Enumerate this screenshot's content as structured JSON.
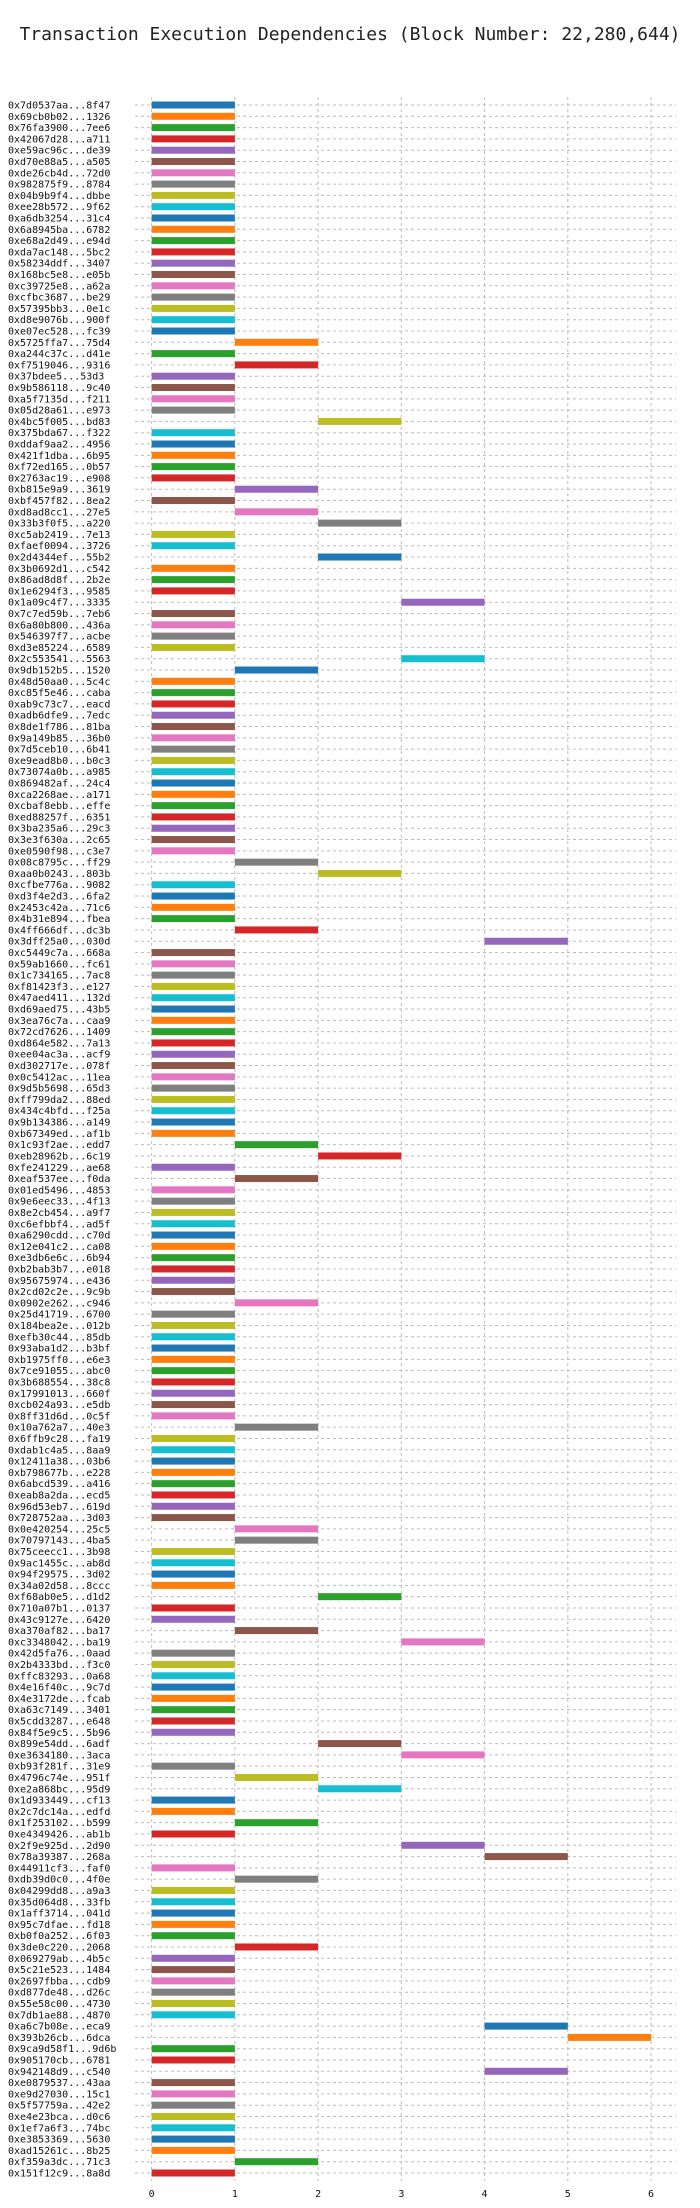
{
  "chart_data": {
    "type": "bar",
    "orientation": "horizontal",
    "title": "Transaction Execution Dependencies (Block Number: 22,280,644)",
    "xlabel": "",
    "ylabel": "",
    "xlim": [
      -0.2,
      6.3
    ],
    "xticks": [
      "0",
      "1",
      "2",
      "3",
      "4",
      "5",
      "6"
    ],
    "grid": true,
    "palette": [
      "#1f77b4",
      "#ff7f0e",
      "#2ca02c",
      "#d62728",
      "#9467bd",
      "#8c564b",
      "#e377c2",
      "#7f7f7f",
      "#bcbd22",
      "#17becf"
    ],
    "rows": [
      {
        "label": "0x7d0537aa...8f47",
        "start": 0
      },
      {
        "label": "0x69cb0b02...1326",
        "start": 0
      },
      {
        "label": "0x76fa3900...7ee6",
        "start": 0
      },
      {
        "label": "0x42067d28...a711",
        "start": 0
      },
      {
        "label": "0xe59ac96c...de39",
        "start": 0
      },
      {
        "label": "0xd70e88a5...a505",
        "start": 0
      },
      {
        "label": "0xde26cb4d...72d0",
        "start": 0
      },
      {
        "label": "0x982875f9...8784",
        "start": 0
      },
      {
        "label": "0x04b9b9f4...dbbe",
        "start": 0
      },
      {
        "label": "0xee28b572...9f62",
        "start": 0
      },
      {
        "label": "0xa6db3254...31c4",
        "start": 0
      },
      {
        "label": "0x6a8945ba...6782",
        "start": 0
      },
      {
        "label": "0xe68a2d49...e94d",
        "start": 0
      },
      {
        "label": "0xda7ac148...5bc2",
        "start": 0
      },
      {
        "label": "0x58234ddf...3407",
        "start": 0
      },
      {
        "label": "0x168bc5e8...e05b",
        "start": 0
      },
      {
        "label": "0xc39725e8...a62a",
        "start": 0
      },
      {
        "label": "0xcfbc3687...be29",
        "start": 0
      },
      {
        "label": "0x57395bb3...0e1c",
        "start": 0
      },
      {
        "label": "0xd8e9076b...900f",
        "start": 0
      },
      {
        "label": "0xe07ec528...fc39",
        "start": 0
      },
      {
        "label": "0x5725ffa7...75d4",
        "start": 1
      },
      {
        "label": "0xa244c37c...d41e",
        "start": 0
      },
      {
        "label": "0xf7519046...9316",
        "start": 1
      },
      {
        "label": "0x37bdee5...53d3",
        "start": 0
      },
      {
        "label": "0x9b586118...9c40",
        "start": 0
      },
      {
        "label": "0xa5f7135d...f211",
        "start": 0
      },
      {
        "label": "0x05d28a61...e973",
        "start": 0
      },
      {
        "label": "0x4bc5f005...bd83",
        "start": 2
      },
      {
        "label": "0x375bda67...f322",
        "start": 0
      },
      {
        "label": "0xddaf9aa2...4956",
        "start": 0
      },
      {
        "label": "0x421f1dba...6b95",
        "start": 0
      },
      {
        "label": "0xf72ed165...0b57",
        "start": 0
      },
      {
        "label": "0x2763ac19...e908",
        "start": 0
      },
      {
        "label": "0xb815e9a9...3619",
        "start": 1
      },
      {
        "label": "0xbf457f82...8ea2",
        "start": 0
      },
      {
        "label": "0xd8ad8cc1...27e5",
        "start": 1
      },
      {
        "label": "0x33b3f0f5...a220",
        "start": 2
      },
      {
        "label": "0xc5ab2419...7e13",
        "start": 0
      },
      {
        "label": "0xfaef0094...3726",
        "start": 0
      },
      {
        "label": "0x2d4344ef...55b2",
        "start": 2
      },
      {
        "label": "0x3b0692d1...c542",
        "start": 0
      },
      {
        "label": "0x86ad8d8f...2b2e",
        "start": 0
      },
      {
        "label": "0x1e6294f3...9585",
        "start": 0
      },
      {
        "label": "0x1a09c4f7...3335",
        "start": 3
      },
      {
        "label": "0x7c7ed59b...7eb6",
        "start": 0
      },
      {
        "label": "0x6a80b800...436a",
        "start": 0
      },
      {
        "label": "0x546397f7...acbe",
        "start": 0
      },
      {
        "label": "0xd3e85224...6589",
        "start": 0
      },
      {
        "label": "0x2c553541...5563",
        "start": 3
      },
      {
        "label": "0x9db152b5...1520",
        "start": 1
      },
      {
        "label": "0x48d50aa0...5c4c",
        "start": 0
      },
      {
        "label": "0xc85f5e46...caba",
        "start": 0
      },
      {
        "label": "0xab9c73c7...eacd",
        "start": 0
      },
      {
        "label": "0xadb6dfe9...7edc",
        "start": 0
      },
      {
        "label": "0x8de1f786...81ba",
        "start": 0
      },
      {
        "label": "0x9a149b85...36b0",
        "start": 0
      },
      {
        "label": "0x7d5ceb10...6b41",
        "start": 0
      },
      {
        "label": "0xe9ead8b0...b0c3",
        "start": 0
      },
      {
        "label": "0x73074a0b...a985",
        "start": 0
      },
      {
        "label": "0x869482af...24c4",
        "start": 0
      },
      {
        "label": "0xca2268ae...a171",
        "start": 0
      },
      {
        "label": "0xcbaf8ebb...effe",
        "start": 0
      },
      {
        "label": "0xed88257f...6351",
        "start": 0
      },
      {
        "label": "0x3ba235a6...29c3",
        "start": 0
      },
      {
        "label": "0x3e3f630a...2c65",
        "start": 0
      },
      {
        "label": "0xe0590f98...c3e7",
        "start": 0
      },
      {
        "label": "0x08c8795c...ff29",
        "start": 1
      },
      {
        "label": "0xaa0b0243...803b",
        "start": 2
      },
      {
        "label": "0xcfbe776a...9082",
        "start": 0
      },
      {
        "label": "0xd3f4e2d3...6fa2",
        "start": 0
      },
      {
        "label": "0x2453c42a...71c6",
        "start": 0
      },
      {
        "label": "0x4b31e894...fbea",
        "start": 0
      },
      {
        "label": "0x4ff666df...dc3b",
        "start": 1
      },
      {
        "label": "0x3dff25a0...030d",
        "start": 4
      },
      {
        "label": "0xc5449c7a...668a",
        "start": 0
      },
      {
        "label": "0x59ab1660...fc61",
        "start": 0
      },
      {
        "label": "0x1c734165...7ac8",
        "start": 0
      },
      {
        "label": "0xf81423f3...e127",
        "start": 0
      },
      {
        "label": "0x47aed411...132d",
        "start": 0
      },
      {
        "label": "0xd69aed75...43b5",
        "start": 0
      },
      {
        "label": "0x3ea76c7a...caa9",
        "start": 0
      },
      {
        "label": "0x72cd7626...1409",
        "start": 0
      },
      {
        "label": "0xd864e582...7a13",
        "start": 0
      },
      {
        "label": "0xee04ac3a...acf9",
        "start": 0
      },
      {
        "label": "0xd302717e...078f",
        "start": 0
      },
      {
        "label": "0x0c5412ac...11ea",
        "start": 0
      },
      {
        "label": "0x9d5b5698...65d3",
        "start": 0
      },
      {
        "label": "0xff799da2...88ed",
        "start": 0
      },
      {
        "label": "0x434c4bfd...f25a",
        "start": 0
      },
      {
        "label": "0x9b134386...a149",
        "start": 0
      },
      {
        "label": "0xb67349ed...af1b",
        "start": 0
      },
      {
        "label": "0x1c93f2ae...edd7",
        "start": 1
      },
      {
        "label": "0xeb28962b...6c19",
        "start": 2
      },
      {
        "label": "0xfe241229...ae68",
        "start": 0
      },
      {
        "label": "0xeaf537ee...f0da",
        "start": 1
      },
      {
        "label": "0x01ed5496...4853",
        "start": 0
      },
      {
        "label": "0x9e6eec33...4f13",
        "start": 0
      },
      {
        "label": "0x8e2cb454...a9f7",
        "start": 0
      },
      {
        "label": "0xc6efbbf4...ad5f",
        "start": 0
      },
      {
        "label": "0xa6290cdd...c70d",
        "start": 0
      },
      {
        "label": "0x12e041c2...ca08",
        "start": 0
      },
      {
        "label": "0xe3db6e6c...6b94",
        "start": 0
      },
      {
        "label": "0xb2bab3b7...e018",
        "start": 0
      },
      {
        "label": "0x95675974...e436",
        "start": 0
      },
      {
        "label": "0x2cd02c2e...9c9b",
        "start": 0
      },
      {
        "label": "0x0902e262...c946",
        "start": 1
      },
      {
        "label": "0x25d41719...6700",
        "start": 0
      },
      {
        "label": "0x184bea2e...012b",
        "start": 0
      },
      {
        "label": "0xefb30c44...85db",
        "start": 0
      },
      {
        "label": "0x93aba1d2...b3bf",
        "start": 0
      },
      {
        "label": "0xb1975ff0...e6e3",
        "start": 0
      },
      {
        "label": "0x7ce91055...abc0",
        "start": 0
      },
      {
        "label": "0x3b688554...38c8",
        "start": 0
      },
      {
        "label": "0x17991013...660f",
        "start": 0
      },
      {
        "label": "0xcb024a93...e5db",
        "start": 0
      },
      {
        "label": "0x8ff31d6d...0c5f",
        "start": 0
      },
      {
        "label": "0x10a762a7...40e3",
        "start": 1
      },
      {
        "label": "0x6ffb9c28...fa19",
        "start": 0
      },
      {
        "label": "0xdab1c4a5...8aa9",
        "start": 0
      },
      {
        "label": "0x12411a38...03b6",
        "start": 0
      },
      {
        "label": "0xb798677b...e228",
        "start": 0
      },
      {
        "label": "0x6abcd539...a416",
        "start": 0
      },
      {
        "label": "0xeab8a2da...ecd5",
        "start": 0
      },
      {
        "label": "0x96d53eb7...619d",
        "start": 0
      },
      {
        "label": "0x728752aa...3d03",
        "start": 0
      },
      {
        "label": "0x0e420254...25c5",
        "start": 1
      },
      {
        "label": "0x70797143...4ba5",
        "start": 1
      },
      {
        "label": "0x75ceecc1...3b98",
        "start": 0
      },
      {
        "label": "0x9ac1455c...ab8d",
        "start": 0
      },
      {
        "label": "0x94f29575...3d02",
        "start": 0
      },
      {
        "label": "0x34a02d58...8ccc",
        "start": 0
      },
      {
        "label": "0xf68ab0e5...d1d2",
        "start": 2
      },
      {
        "label": "0x710a07b1...0137",
        "start": 0
      },
      {
        "label": "0x43c9127e...6420",
        "start": 0
      },
      {
        "label": "0xa370af82...ba17",
        "start": 1
      },
      {
        "label": "0xc3348042...ba19",
        "start": 3
      },
      {
        "label": "0x42d5fa76...0aad",
        "start": 0
      },
      {
        "label": "0x2b4333bd...f3c0",
        "start": 0
      },
      {
        "label": "0xffc83293...0a68",
        "start": 0
      },
      {
        "label": "0x4e16f40c...9c7d",
        "start": 0
      },
      {
        "label": "0x4e3172de...fcab",
        "start": 0
      },
      {
        "label": "0xa63c7149...3401",
        "start": 0
      },
      {
        "label": "0x5cdd3287...e648",
        "start": 0
      },
      {
        "label": "0x84f5e9c5...5b96",
        "start": 0
      },
      {
        "label": "0x899e54dd...6adf",
        "start": 2
      },
      {
        "label": "0xe3634180...3aca",
        "start": 3
      },
      {
        "label": "0xb93f281f...31e9",
        "start": 0
      },
      {
        "label": "0x4796c74e...951f",
        "start": 1
      },
      {
        "label": "0xe2a868bc...95d9",
        "start": 2
      },
      {
        "label": "0x1d933449...cf13",
        "start": 0
      },
      {
        "label": "0x2c7dc14a...edfd",
        "start": 0
      },
      {
        "label": "0x1f253102...b599",
        "start": 1
      },
      {
        "label": "0xe4349426...ab1b",
        "start": 0
      },
      {
        "label": "0x2f9e925d...2d90",
        "start": 3
      },
      {
        "label": "0x78a39387...268a",
        "start": 4
      },
      {
        "label": "0x44911cf3...faf0",
        "start": 0
      },
      {
        "label": "0xdb39d0c0...4f0e",
        "start": 1
      },
      {
        "label": "0x04299dd8...a9a3",
        "start": 0
      },
      {
        "label": "0x35d064d8...33fb",
        "start": 0
      },
      {
        "label": "0x1aff3714...041d",
        "start": 0
      },
      {
        "label": "0x95c7dfae...fd18",
        "start": 0
      },
      {
        "label": "0xb0f0a252...6f03",
        "start": 0
      },
      {
        "label": "0x3de0c220...2068",
        "start": 1
      },
      {
        "label": "0x069279ab...4b5c",
        "start": 0
      },
      {
        "label": "0x5c21e523...1484",
        "start": 0
      },
      {
        "label": "0x2697fbba...cdb9",
        "start": 0
      },
      {
        "label": "0xd877de48...d26c",
        "start": 0
      },
      {
        "label": "0x55e58c00...4730",
        "start": 0
      },
      {
        "label": "0x7db1ae88...4870",
        "start": 0
      },
      {
        "label": "0xa6c7b08e...eca9",
        "start": 4
      },
      {
        "label": "0x393b26cb...6dca",
        "start": 5
      },
      {
        "label": "0x9ca9d58f1...9d6b",
        "start": 0
      },
      {
        "label": "0x905170cb...6781",
        "start": 0
      },
      {
        "label": "0x942148d9...c540",
        "start": 4
      },
      {
        "label": "0xe0879537...43aa",
        "start": 0
      },
      {
        "label": "0xe9d27030...15c1",
        "start": 0
      },
      {
        "label": "0x5f57759a...42e2",
        "start": 0
      },
      {
        "label": "0xe4e23bca...d0c6",
        "start": 0
      },
      {
        "label": "0x1ef7a6f3...74bc",
        "start": 0
      },
      {
        "label": "0xe3853369...5630",
        "start": 0
      },
      {
        "label": "0xad15261c...8b25",
        "start": 0
      },
      {
        "label": "0xf359a3dc...71c3",
        "start": 1
      },
      {
        "label": "0x151f12c9...8a8d",
        "start": 0
      }
    ]
  }
}
